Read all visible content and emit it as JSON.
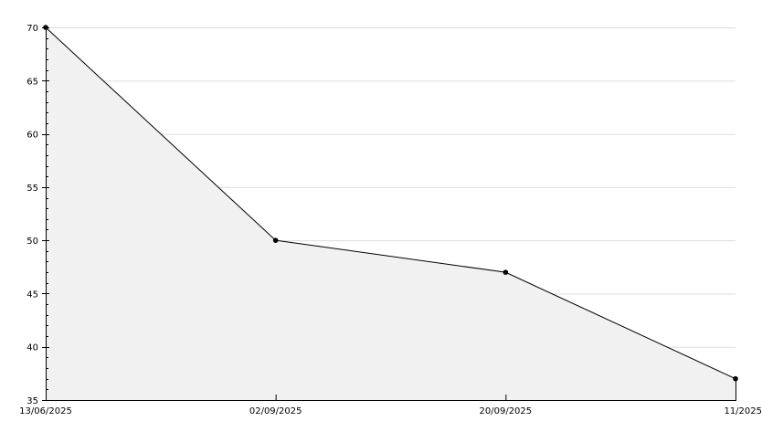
{
  "chart_data": {
    "type": "area",
    "categories": [
      "13/06/2025",
      "02/09/2025",
      "20/09/2025",
      "11/2025"
    ],
    "values": [
      70,
      50,
      47,
      37
    ],
    "title": "",
    "xlabel": "",
    "ylabel": "",
    "ylim": [
      35,
      70
    ],
    "yticks": [
      "35",
      "40",
      "45",
      "50",
      "55",
      "60",
      "65",
      "70"
    ],
    "grid": true,
    "colors": {
      "fill": "#f1f1f1",
      "line": "#000000",
      "grid": "#dddddd",
      "marker": "#000000"
    }
  }
}
